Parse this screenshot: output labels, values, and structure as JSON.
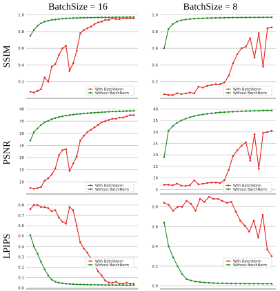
{
  "figure": {
    "column_titles": [
      "BatchSize = 16",
      "BatchSize = 8"
    ],
    "row_labels": [
      "SSIM",
      "PSNR",
      "LPIPS"
    ],
    "colors": {
      "with_batchnorm": "#e8221b",
      "without_batchnorm": "#1f8a1f",
      "grid": "#c8c8c8"
    }
  },
  "chart_data": [
    {
      "type": "line",
      "row": "SSIM",
      "column": "BatchSize = 16",
      "ylim": [
        0,
        1.03
      ],
      "yticks": [
        "0.2",
        "0.4",
        "0.6",
        "0.8",
        "1.0"
      ],
      "ytick_values": [
        0.2,
        0.4,
        0.6,
        0.8,
        1.0
      ],
      "grid": true,
      "legend": "bottom-right",
      "series": [
        {
          "name": "With BatchNorm",
          "color": "#e8221b",
          "values": [
            0.08,
            0.07,
            0.09,
            0.11,
            0.25,
            0.2,
            0.38,
            0.41,
            0.52,
            0.6,
            0.63,
            0.33,
            0.42,
            0.57,
            0.78,
            0.82,
            0.84,
            0.86,
            0.89,
            0.91,
            0.92,
            0.94,
            0.94,
            0.96,
            0.95,
            0.95,
            0.96,
            0.96,
            0.96,
            0.96
          ]
        },
        {
          "name": "Without BatchNorm",
          "color": "#1f8a1f",
          "values": [
            0.75,
            0.82,
            0.87,
            0.9,
            0.92,
            0.93,
            0.94,
            0.945,
            0.95,
            0.955,
            0.958,
            0.96,
            0.962,
            0.963,
            0.965,
            0.966,
            0.967,
            0.968,
            0.968,
            0.969,
            0.97,
            0.97,
            0.971,
            0.971,
            0.972,
            0.972,
            0.972,
            0.973,
            0.973,
            0.973
          ]
        }
      ]
    },
    {
      "type": "line",
      "row": "SSIM",
      "column": "BatchSize = 8",
      "ylim": [
        0,
        1.03
      ],
      "yticks": [
        "0.2",
        "0.4",
        "0.6",
        "0.8",
        "1.0"
      ],
      "ytick_values": [
        0.2,
        0.4,
        0.6,
        0.8,
        1.0
      ],
      "grid": true,
      "legend": "bottom-right",
      "series": [
        {
          "name": "With BatchNorm",
          "color": "#e8221b",
          "values": [
            0.05,
            0.04,
            0.04,
            0.06,
            0.05,
            0.06,
            0.07,
            0.06,
            0.14,
            0.13,
            0.15,
            0.16,
            0.17,
            0.17,
            0.19,
            0.27,
            0.42,
            0.53,
            0.6,
            0.62,
            0.72,
            0.49,
            0.78,
            0.38,
            0.84,
            0.85
          ]
        },
        {
          "name": "Without BatchNorm",
          "color": "#1f8a1f",
          "values": [
            0.6,
            0.83,
            0.89,
            0.92,
            0.935,
            0.945,
            0.95,
            0.955,
            0.958,
            0.96,
            0.962,
            0.963,
            0.964,
            0.965,
            0.966,
            0.967,
            0.968,
            0.968,
            0.969,
            0.969,
            0.97,
            0.97,
            0.97,
            0.971,
            0.971,
            0.971
          ]
        }
      ]
    },
    {
      "type": "line",
      "row": "PSNR",
      "column": "BatchSize = 16",
      "ylim": [
        5,
        41
      ],
      "yticks": [
        "10",
        "15",
        "20",
        "25",
        "30",
        "35",
        "40"
      ],
      "ytick_values": [
        10,
        15,
        20,
        25,
        30,
        35,
        40
      ],
      "grid": true,
      "legend": "bottom-right",
      "series": [
        {
          "name": "With BatchNorm",
          "color": "#e8221b",
          "values": [
            7.5,
            7.2,
            7.4,
            7.9,
            10.5,
            11.5,
            13.0,
            15.5,
            21.0,
            23.0,
            23.5,
            14.5,
            17.5,
            20.5,
            27.0,
            29.0,
            30.5,
            31.5,
            32.5,
            33.5,
            34.5,
            35.0,
            35.5,
            36.0,
            36.0,
            36.5,
            36.5,
            37.0,
            37.5,
            37.5
          ]
        },
        {
          "name": "Without BatchNorm",
          "color": "#1f8a1f",
          "values": [
            27.0,
            30.5,
            32.0,
            33.5,
            34.5,
            35.2,
            35.8,
            36.3,
            36.7,
            37.0,
            37.3,
            37.5,
            37.7,
            37.9,
            38.0,
            38.2,
            38.3,
            38.4,
            38.5,
            38.6,
            38.7,
            38.8,
            38.9,
            39.0,
            39.0,
            39.1,
            39.1,
            39.2,
            39.2,
            39.3
          ]
        }
      ]
    },
    {
      "type": "line",
      "row": "PSNR",
      "column": "BatchSize = 8",
      "ylim": [
        3,
        41
      ],
      "yticks": [
        "5",
        "10",
        "15",
        "20",
        "25",
        "30",
        "35",
        "40"
      ],
      "ytick_values": [
        5,
        10,
        15,
        20,
        25,
        30,
        35,
        40
      ],
      "grid": true,
      "legend": "bottom-right",
      "series": [
        {
          "name": "With BatchNorm",
          "color": "#e8221b",
          "values": [
            7.0,
            7.0,
            6.8,
            7.5,
            6.6,
            6.5,
            6.8,
            9.0,
            7.2,
            7.5,
            7.8,
            8.0,
            8.0,
            7.8,
            9.0,
            13.5,
            19.5,
            22.0,
            24.0,
            25.5,
            17.5,
            29.0,
            14.0,
            29.5,
            30.0,
            30.5
          ]
        },
        {
          "name": "Without BatchNorm",
          "color": "#1f8a1f",
          "values": [
            19.0,
            30.5,
            32.5,
            34.0,
            35.0,
            35.8,
            36.4,
            36.9,
            37.3,
            37.6,
            37.9,
            38.1,
            38.3,
            38.5,
            38.6,
            38.7,
            38.8,
            38.9,
            39.0,
            39.1,
            39.1,
            39.2,
            39.2,
            39.3,
            39.3,
            39.3
          ]
        }
      ]
    },
    {
      "type": "line",
      "row": "LPIPS",
      "column": "BatchSize = 16",
      "ylim": [
        -0.01,
        0.84
      ],
      "yticks": [
        "0.0",
        "0.1",
        "0.2",
        "0.3",
        "0.4",
        "0.5",
        "0.6",
        "0.7",
        "0.8"
      ],
      "ytick_values": [
        0.0,
        0.1,
        0.2,
        0.3,
        0.4,
        0.5,
        0.6,
        0.7,
        0.8
      ],
      "grid": true,
      "legend": "bottom-right",
      "series": [
        {
          "name": "With BatchNorm",
          "color": "#e8221b",
          "values": [
            0.76,
            0.8,
            0.8,
            0.78,
            0.78,
            0.77,
            0.74,
            0.75,
            0.68,
            0.64,
            0.62,
            0.78,
            0.75,
            0.6,
            0.44,
            0.38,
            0.34,
            0.28,
            0.22,
            0.16,
            0.12,
            0.07,
            0.05,
            0.05,
            0.06,
            0.04,
            0.04,
            0.05,
            0.04,
            0.04
          ]
        },
        {
          "name": "Without BatchNorm",
          "color": "#1f8a1f",
          "values": [
            0.51,
            0.4,
            0.33,
            0.25,
            0.18,
            0.12,
            0.08,
            0.06,
            0.05,
            0.045,
            0.04,
            0.038,
            0.036,
            0.034,
            0.033,
            0.032,
            0.031,
            0.03,
            0.03,
            0.029,
            0.029,
            0.028,
            0.028,
            0.028,
            0.027,
            0.027,
            0.027,
            0.026,
            0.026,
            0.026
          ]
        }
      ]
    },
    {
      "type": "line",
      "row": "LPIPS",
      "column": "BatchSize = 8",
      "ylim": [
        -0.03,
        0.86
      ],
      "yticks": [
        "0.0",
        "0.2",
        "0.4",
        "0.6",
        "0.8"
      ],
      "ytick_values": [
        0.0,
        0.2,
        0.4,
        0.6,
        0.8
      ],
      "grid": true,
      "legend": "bottom-right",
      "series": [
        {
          "name": "With BatchNorm",
          "color": "#e8221b",
          "values": [
            0.84,
            0.82,
            0.76,
            0.8,
            0.8,
            0.86,
            0.83,
            0.76,
            0.88,
            0.85,
            0.9,
            0.88,
            0.88,
            0.86,
            0.84,
            0.85,
            0.75,
            0.66,
            0.61,
            0.55,
            0.66,
            0.49,
            0.72,
            0.37,
            0.3
          ]
        },
        {
          "name": "Without BatchNorm",
          "color": "#1f8a1f",
          "values": [
            0.64,
            0.4,
            0.29,
            0.2,
            0.12,
            0.07,
            0.055,
            0.045,
            0.04,
            0.035,
            0.032,
            0.03,
            0.028,
            0.027,
            0.026,
            0.025,
            0.025,
            0.024,
            0.024,
            0.023,
            0.023,
            0.023,
            0.022,
            0.022,
            0.022
          ]
        }
      ]
    }
  ]
}
